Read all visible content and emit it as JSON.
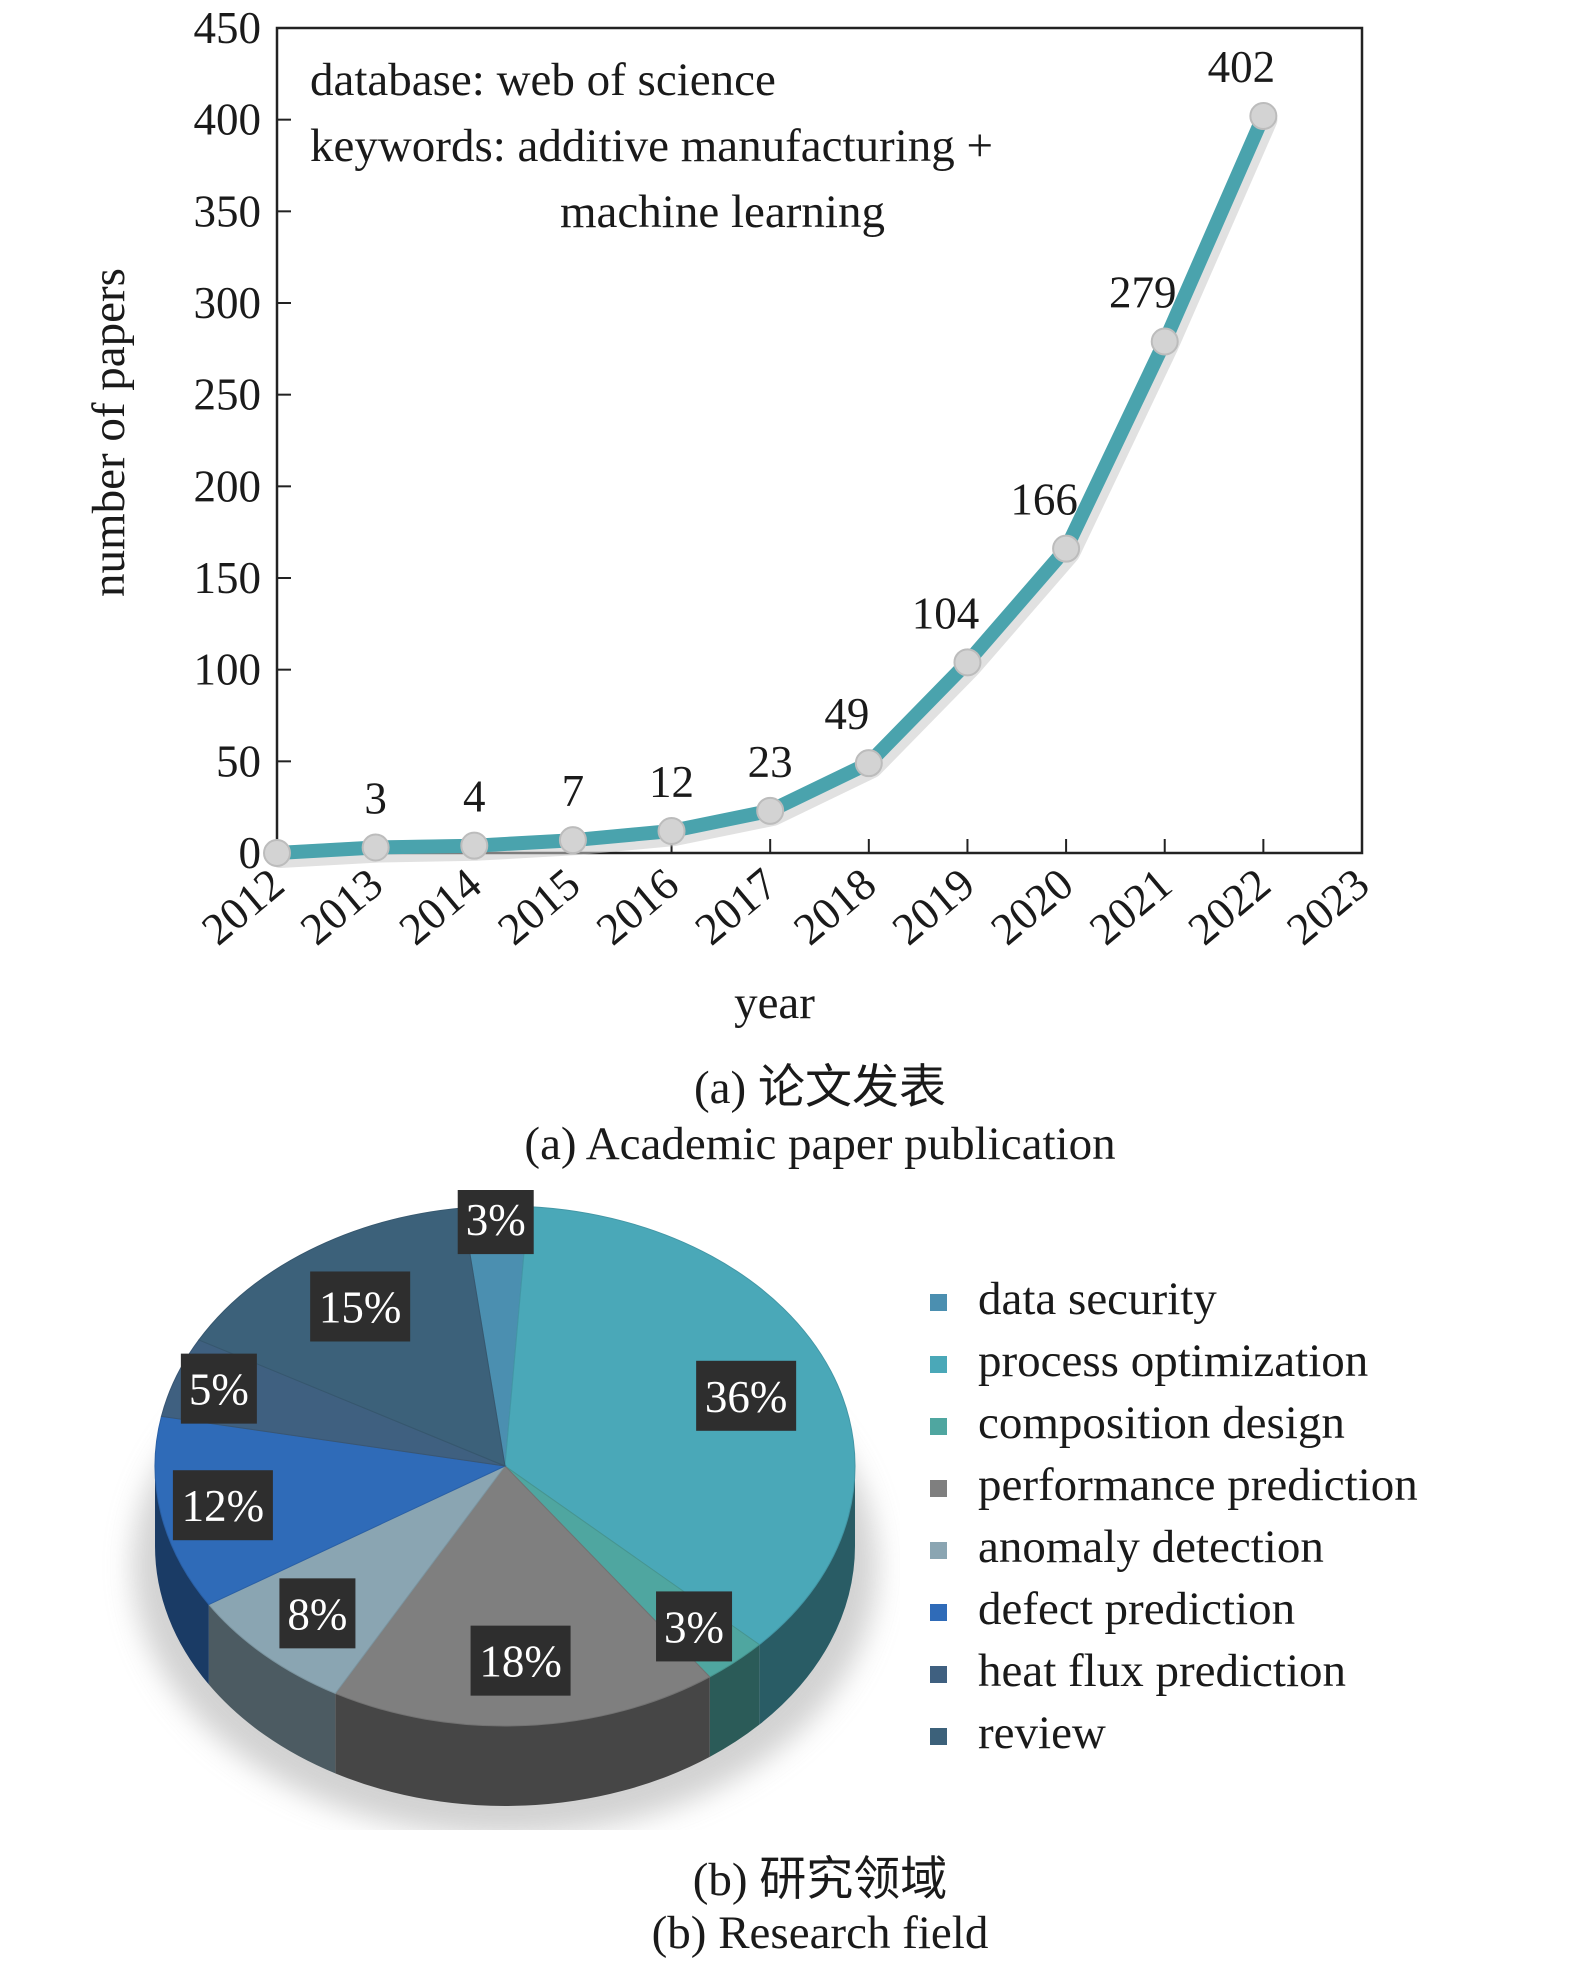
{
  "chart_data": [
    {
      "type": "line",
      "xlabel": "year",
      "ylabel": "number of papers",
      "x_ticks": [
        "2012",
        "2013",
        "2014",
        "2015",
        "2016",
        "2017",
        "2018",
        "2019",
        "2020",
        "2021",
        "2022",
        "2023"
      ],
      "y_ticks": [
        "0",
        "50",
        "100",
        "150",
        "200",
        "250",
        "300",
        "350",
        "400",
        "450"
      ],
      "xlim": [
        2012,
        2023
      ],
      "ylim": [
        0,
        450
      ],
      "x": [
        2012,
        2013,
        2014,
        2015,
        2016,
        2017,
        2018,
        2019,
        2020,
        2021,
        2022
      ],
      "values": [
        0,
        3,
        4,
        7,
        12,
        23,
        49,
        104,
        166,
        279,
        402
      ],
      "data_labels": [
        "",
        "3",
        "4",
        "7",
        "12",
        "23",
        "49",
        "104",
        "166",
        "279",
        "402"
      ],
      "annotation": [
        "database: web of science",
        "keywords: additive manufacturing +",
        "machine learning"
      ],
      "grid": false,
      "colors": {
        "line": "#4aa3ad",
        "marker": "#d3d3d3"
      }
    },
    {
      "type": "pie",
      "categories": [
        "data security",
        "process optimization",
        "composition design",
        "performance prediction",
        "anomaly detection",
        "defect prediction",
        "heat flux prediction",
        "review"
      ],
      "values": [
        3,
        36,
        3,
        18,
        8,
        12,
        5,
        15
      ],
      "value_labels": [
        "3%",
        "36%",
        "3%",
        "18%",
        "8%",
        "12%",
        "5%",
        "15%"
      ],
      "colors": [
        "#4b8fb0",
        "#4aa8b8",
        "#4fa6a0",
        "#7f7f7f",
        "#8aa5b2",
        "#2f6bb8",
        "#3f6080",
        "#3c617a"
      ],
      "legend": "right"
    }
  ],
  "captions": {
    "a_cn": "(a) 论文发表",
    "a_en": "(a) Academic paper publication",
    "b_cn": "(b) 研究领域",
    "b_en": "(b) Research field"
  }
}
